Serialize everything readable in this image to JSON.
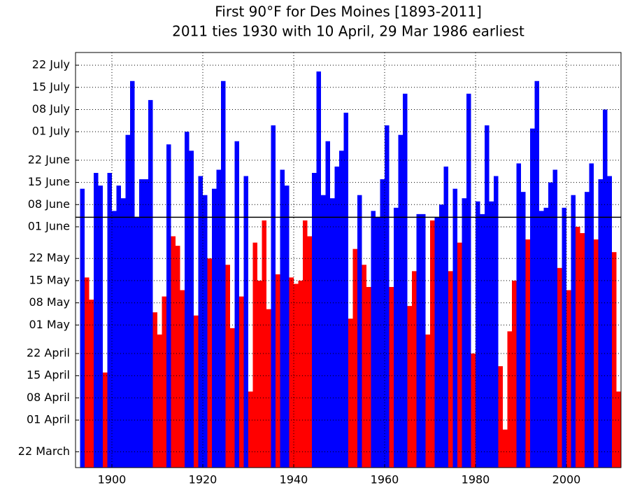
{
  "chart_data": {
    "type": "bar",
    "title": "First 90°F for Des Moines [1893-2011]",
    "subtitle": "2011 ties 1930 with 10 April, 29 Mar 1986 earliest",
    "x": [
      1893,
      1894,
      1895,
      1896,
      1897,
      1898,
      1899,
      1900,
      1901,
      1902,
      1903,
      1904,
      1905,
      1906,
      1907,
      1908,
      1909,
      1910,
      1911,
      1912,
      1913,
      1914,
      1915,
      1916,
      1917,
      1918,
      1919,
      1920,
      1921,
      1922,
      1923,
      1924,
      1925,
      1926,
      1927,
      1928,
      1929,
      1930,
      1931,
      1932,
      1933,
      1934,
      1935,
      1936,
      1937,
      1938,
      1939,
      1940,
      1941,
      1942,
      1943,
      1944,
      1945,
      1946,
      1947,
      1948,
      1949,
      1950,
      1951,
      1952,
      1953,
      1954,
      1955,
      1956,
      1957,
      1958,
      1959,
      1960,
      1961,
      1962,
      1963,
      1964,
      1965,
      1966,
      1967,
      1968,
      1969,
      1970,
      1971,
      1972,
      1973,
      1974,
      1975,
      1976,
      1977,
      1978,
      1979,
      1980,
      1981,
      1982,
      1983,
      1984,
      1985,
      1986,
      1987,
      1988,
      1989,
      1990,
      1991,
      1992,
      1993,
      1994,
      1995,
      1996,
      1997,
      1998,
      1999,
      2000,
      2001,
      2002,
      2003,
      2004,
      2005,
      2006,
      2007,
      2008,
      2009,
      2010,
      2011
    ],
    "values": [
      164,
      136,
      129,
      169,
      165,
      106,
      169,
      157,
      165,
      161,
      181,
      198,
      155,
      167,
      167,
      192,
      125,
      118,
      130,
      178,
      149,
      146,
      132,
      182,
      176,
      124,
      168,
      162,
      142,
      164,
      170,
      198,
      140,
      120,
      179,
      130,
      168,
      100,
      147,
      135,
      154,
      126,
      184,
      137,
      170,
      165,
      136,
      134,
      135,
      154,
      149,
      169,
      201,
      162,
      179,
      161,
      171,
      176,
      188,
      123,
      145,
      162,
      140,
      133,
      157,
      155,
      167,
      184,
      133,
      158,
      181,
      194,
      127,
      138,
      156,
      156,
      118,
      154,
      155,
      159,
      171,
      138,
      164,
      147,
      161,
      194,
      112,
      160,
      156,
      184,
      160,
      168,
      108,
      88,
      119,
      135,
      172,
      163,
      148,
      183,
      198,
      157,
      158,
      166,
      170,
      139,
      158,
      132,
      162,
      152,
      150,
      163,
      172,
      148,
      167,
      189,
      168,
      144,
      100
    ],
    "reference_line": 155,
    "above_color": "#0000ff",
    "below_color": "#ff0000",
    "xlim": [
      1892,
      2012
    ],
    "xticks": [
      1900,
      1920,
      1940,
      1960,
      1980,
      2000
    ],
    "ylim": [
      76,
      207
    ],
    "yticks": [
      {
        "value": 81,
        "label": "22 March"
      },
      {
        "value": 91,
        "label": "01 April"
      },
      {
        "value": 98,
        "label": "08 April"
      },
      {
        "value": 105,
        "label": "15 April"
      },
      {
        "value": 112,
        "label": "22 April"
      },
      {
        "value": 121,
        "label": "01 May"
      },
      {
        "value": 128,
        "label": "08 May"
      },
      {
        "value": 135,
        "label": "15 May"
      },
      {
        "value": 142,
        "label": "22 May"
      },
      {
        "value": 152,
        "label": "01 June"
      },
      {
        "value": 159,
        "label": "08 June"
      },
      {
        "value": 166,
        "label": "15 June"
      },
      {
        "value": 173,
        "label": "22 June"
      },
      {
        "value": 182,
        "label": "01 July"
      },
      {
        "value": 189,
        "label": "08 July"
      },
      {
        "value": 196,
        "label": "15 July"
      },
      {
        "value": 203,
        "label": "22 July"
      }
    ],
    "grid": true
  }
}
